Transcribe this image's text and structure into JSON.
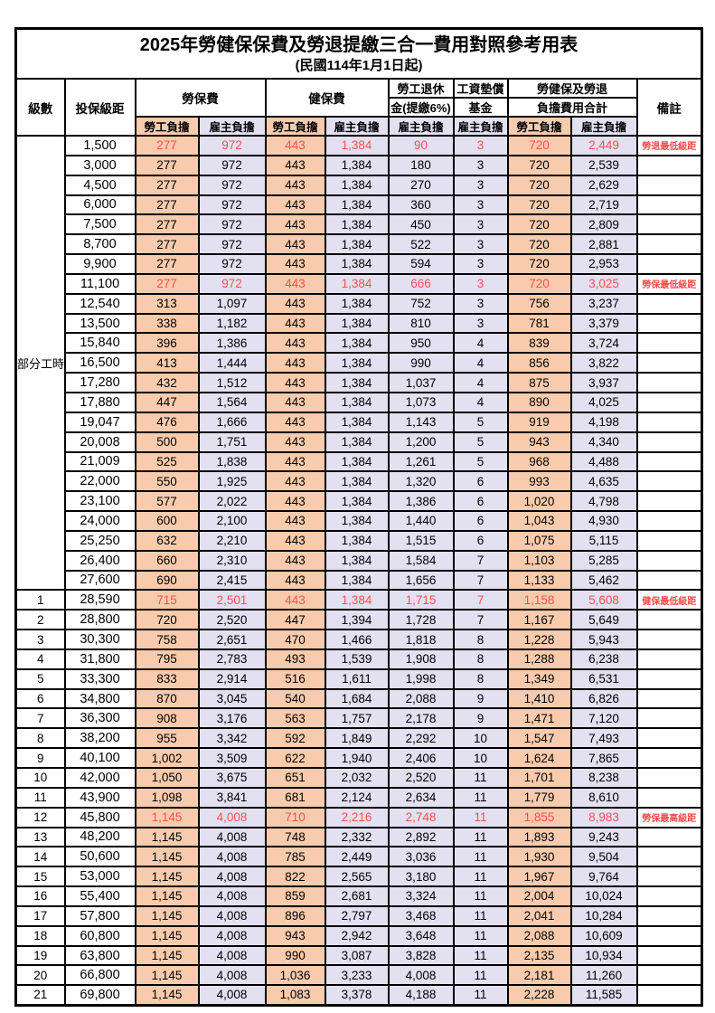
{
  "title": "2025年勞健保保費及勞退提繳三合一費用對照參考用表",
  "subtitle": "(民國114年1月1日起)",
  "colors": {
    "employee_col_bg": "#F8CBAD",
    "employer_col_bg": "#E2E0F1",
    "highlight_red": "#FF5050",
    "border": "#000000"
  },
  "table": {
    "headers": {
      "grade": "級數",
      "bracket": "投保級距",
      "labor_fee": "勞保費",
      "health_fee": "健保費",
      "pension_line1": "勞工退休",
      "pension_line2": "金(提繳6%)",
      "fund_line1": "工資墊償",
      "fund_line2": "基金",
      "total_line1": "勞健保及勞退",
      "total_line2": "負擔費用合計",
      "note": "備註",
      "employee_share": "勞工負擔",
      "employer_share": "雇主負擔"
    },
    "part_time_label": "部分工時",
    "part_time_span": 23,
    "rows": [
      {
        "grade": "",
        "bracket": "1,500",
        "labor_emp": "277",
        "labor_er": "972",
        "health_emp": "443",
        "health_er": "1,384",
        "pension_er": "90",
        "fund_er": "3",
        "total_emp": "720",
        "total_er": "2,449",
        "note": "勞退最低級距",
        "red": true
      },
      {
        "grade": "",
        "bracket": "3,000",
        "labor_emp": "277",
        "labor_er": "972",
        "health_emp": "443",
        "health_er": "1,384",
        "pension_er": "180",
        "fund_er": "3",
        "total_emp": "720",
        "total_er": "2,539",
        "note": "",
        "red": false
      },
      {
        "grade": "",
        "bracket": "4,500",
        "labor_emp": "277",
        "labor_er": "972",
        "health_emp": "443",
        "health_er": "1,384",
        "pension_er": "270",
        "fund_er": "3",
        "total_emp": "720",
        "total_er": "2,629",
        "note": "",
        "red": false
      },
      {
        "grade": "",
        "bracket": "6,000",
        "labor_emp": "277",
        "labor_er": "972",
        "health_emp": "443",
        "health_er": "1,384",
        "pension_er": "360",
        "fund_er": "3",
        "total_emp": "720",
        "total_er": "2,719",
        "note": "",
        "red": false
      },
      {
        "grade": "",
        "bracket": "7,500",
        "labor_emp": "277",
        "labor_er": "972",
        "health_emp": "443",
        "health_er": "1,384",
        "pension_er": "450",
        "fund_er": "3",
        "total_emp": "720",
        "total_er": "2,809",
        "note": "",
        "red": false
      },
      {
        "grade": "",
        "bracket": "8,700",
        "labor_emp": "277",
        "labor_er": "972",
        "health_emp": "443",
        "health_er": "1,384",
        "pension_er": "522",
        "fund_er": "3",
        "total_emp": "720",
        "total_er": "2,881",
        "note": "",
        "red": false
      },
      {
        "grade": "",
        "bracket": "9,900",
        "labor_emp": "277",
        "labor_er": "972",
        "health_emp": "443",
        "health_er": "1,384",
        "pension_er": "594",
        "fund_er": "3",
        "total_emp": "720",
        "total_er": "2,953",
        "note": "",
        "red": false
      },
      {
        "grade": "",
        "bracket": "11,100",
        "labor_emp": "277",
        "labor_er": "972",
        "health_emp": "443",
        "health_er": "1,384",
        "pension_er": "666",
        "fund_er": "3",
        "total_emp": "720",
        "total_er": "3,025",
        "note": "勞保最低級距",
        "red": true
      },
      {
        "grade": "",
        "bracket": "12,540",
        "labor_emp": "313",
        "labor_er": "1,097",
        "health_emp": "443",
        "health_er": "1,384",
        "pension_er": "752",
        "fund_er": "3",
        "total_emp": "756",
        "total_er": "3,237",
        "note": "",
        "red": false
      },
      {
        "grade": "",
        "bracket": "13,500",
        "labor_emp": "338",
        "labor_er": "1,182",
        "health_emp": "443",
        "health_er": "1,384",
        "pension_er": "810",
        "fund_er": "3",
        "total_emp": "781",
        "total_er": "3,379",
        "note": "",
        "red": false
      },
      {
        "grade": "",
        "bracket": "15,840",
        "labor_emp": "396",
        "labor_er": "1,386",
        "health_emp": "443",
        "health_er": "1,384",
        "pension_er": "950",
        "fund_er": "4",
        "total_emp": "839",
        "total_er": "3,724",
        "note": "",
        "red": false
      },
      {
        "grade": "",
        "bracket": "16,500",
        "labor_emp": "413",
        "labor_er": "1,444",
        "health_emp": "443",
        "health_er": "1,384",
        "pension_er": "990",
        "fund_er": "4",
        "total_emp": "856",
        "total_er": "3,822",
        "note": "",
        "red": false
      },
      {
        "grade": "",
        "bracket": "17,280",
        "labor_emp": "432",
        "labor_er": "1,512",
        "health_emp": "443",
        "health_er": "1,384",
        "pension_er": "1,037",
        "fund_er": "4",
        "total_emp": "875",
        "total_er": "3,937",
        "note": "",
        "red": false
      },
      {
        "grade": "",
        "bracket": "17,880",
        "labor_emp": "447",
        "labor_er": "1,564",
        "health_emp": "443",
        "health_er": "1,384",
        "pension_er": "1,073",
        "fund_er": "4",
        "total_emp": "890",
        "total_er": "4,025",
        "note": "",
        "red": false
      },
      {
        "grade": "",
        "bracket": "19,047",
        "labor_emp": "476",
        "labor_er": "1,666",
        "health_emp": "443",
        "health_er": "1,384",
        "pension_er": "1,143",
        "fund_er": "5",
        "total_emp": "919",
        "total_er": "4,198",
        "note": "",
        "red": false
      },
      {
        "grade": "",
        "bracket": "20,008",
        "labor_emp": "500",
        "labor_er": "1,751",
        "health_emp": "443",
        "health_er": "1,384",
        "pension_er": "1,200",
        "fund_er": "5",
        "total_emp": "943",
        "total_er": "4,340",
        "note": "",
        "red": false
      },
      {
        "grade": "",
        "bracket": "21,009",
        "labor_emp": "525",
        "labor_er": "1,838",
        "health_emp": "443",
        "health_er": "1,384",
        "pension_er": "1,261",
        "fund_er": "5",
        "total_emp": "968",
        "total_er": "4,488",
        "note": "",
        "red": false
      },
      {
        "grade": "",
        "bracket": "22,000",
        "labor_emp": "550",
        "labor_er": "1,925",
        "health_emp": "443",
        "health_er": "1,384",
        "pension_er": "1,320",
        "fund_er": "6",
        "total_emp": "993",
        "total_er": "4,635",
        "note": "",
        "red": false
      },
      {
        "grade": "",
        "bracket": "23,100",
        "labor_emp": "577",
        "labor_er": "2,022",
        "health_emp": "443",
        "health_er": "1,384",
        "pension_er": "1,386",
        "fund_er": "6",
        "total_emp": "1,020",
        "total_er": "4,798",
        "note": "",
        "red": false
      },
      {
        "grade": "",
        "bracket": "24,000",
        "labor_emp": "600",
        "labor_er": "2,100",
        "health_emp": "443",
        "health_er": "1,384",
        "pension_er": "1,440",
        "fund_er": "6",
        "total_emp": "1,043",
        "total_er": "4,930",
        "note": "",
        "red": false
      },
      {
        "grade": "",
        "bracket": "25,250",
        "labor_emp": "632",
        "labor_er": "2,210",
        "health_emp": "443",
        "health_er": "1,384",
        "pension_er": "1,515",
        "fund_er": "6",
        "total_emp": "1,075",
        "total_er": "5,115",
        "note": "",
        "red": false
      },
      {
        "grade": "",
        "bracket": "26,400",
        "labor_emp": "660",
        "labor_er": "2,310",
        "health_emp": "443",
        "health_er": "1,384",
        "pension_er": "1,584",
        "fund_er": "7",
        "total_emp": "1,103",
        "total_er": "5,285",
        "note": "",
        "red": false
      },
      {
        "grade": "",
        "bracket": "27,600",
        "labor_emp": "690",
        "labor_er": "2,415",
        "health_emp": "443",
        "health_er": "1,384",
        "pension_er": "1,656",
        "fund_er": "7",
        "total_emp": "1,133",
        "total_er": "5,462",
        "note": "",
        "red": false
      },
      {
        "grade": "1",
        "bracket": "28,590",
        "labor_emp": "715",
        "labor_er": "2,501",
        "health_emp": "443",
        "health_er": "1,384",
        "pension_er": "1,715",
        "fund_er": "7",
        "total_emp": "1,158",
        "total_er": "5,608",
        "note": "健保最低級距",
        "red": true
      },
      {
        "grade": "2",
        "bracket": "28,800",
        "labor_emp": "720",
        "labor_er": "2,520",
        "health_emp": "447",
        "health_er": "1,394",
        "pension_er": "1,728",
        "fund_er": "7",
        "total_emp": "1,167",
        "total_er": "5,649",
        "note": "",
        "red": false
      },
      {
        "grade": "3",
        "bracket": "30,300",
        "labor_emp": "758",
        "labor_er": "2,651",
        "health_emp": "470",
        "health_er": "1,466",
        "pension_er": "1,818",
        "fund_er": "8",
        "total_emp": "1,228",
        "total_er": "5,943",
        "note": "",
        "red": false
      },
      {
        "grade": "4",
        "bracket": "31,800",
        "labor_emp": "795",
        "labor_er": "2,783",
        "health_emp": "493",
        "health_er": "1,539",
        "pension_er": "1,908",
        "fund_er": "8",
        "total_emp": "1,288",
        "total_er": "6,238",
        "note": "",
        "red": false
      },
      {
        "grade": "5",
        "bracket": "33,300",
        "labor_emp": "833",
        "labor_er": "2,914",
        "health_emp": "516",
        "health_er": "1,611",
        "pension_er": "1,998",
        "fund_er": "8",
        "total_emp": "1,349",
        "total_er": "6,531",
        "note": "",
        "red": false
      },
      {
        "grade": "6",
        "bracket": "34,800",
        "labor_emp": "870",
        "labor_er": "3,045",
        "health_emp": "540",
        "health_er": "1,684",
        "pension_er": "2,088",
        "fund_er": "9",
        "total_emp": "1,410",
        "total_er": "6,826",
        "note": "",
        "red": false
      },
      {
        "grade": "7",
        "bracket": "36,300",
        "labor_emp": "908",
        "labor_er": "3,176",
        "health_emp": "563",
        "health_er": "1,757",
        "pension_er": "2,178",
        "fund_er": "9",
        "total_emp": "1,471",
        "total_er": "7,120",
        "note": "",
        "red": false
      },
      {
        "grade": "8",
        "bracket": "38,200",
        "labor_emp": "955",
        "labor_er": "3,342",
        "health_emp": "592",
        "health_er": "1,849",
        "pension_er": "2,292",
        "fund_er": "10",
        "total_emp": "1,547",
        "total_er": "7,493",
        "note": "",
        "red": false
      },
      {
        "grade": "9",
        "bracket": "40,100",
        "labor_emp": "1,002",
        "labor_er": "3,509",
        "health_emp": "622",
        "health_er": "1,940",
        "pension_er": "2,406",
        "fund_er": "10",
        "total_emp": "1,624",
        "total_er": "7,865",
        "note": "",
        "red": false
      },
      {
        "grade": "10",
        "bracket": "42,000",
        "labor_emp": "1,050",
        "labor_er": "3,675",
        "health_emp": "651",
        "health_er": "2,032",
        "pension_er": "2,520",
        "fund_er": "11",
        "total_emp": "1,701",
        "total_er": "8,238",
        "note": "",
        "red": false
      },
      {
        "grade": "11",
        "bracket": "43,900",
        "labor_emp": "1,098",
        "labor_er": "3,841",
        "health_emp": "681",
        "health_er": "2,124",
        "pension_er": "2,634",
        "fund_er": "11",
        "total_emp": "1,779",
        "total_er": "8,610",
        "note": "",
        "red": false
      },
      {
        "grade": "12",
        "bracket": "45,800",
        "labor_emp": "1,145",
        "labor_er": "4,008",
        "health_emp": "710",
        "health_er": "2,216",
        "pension_er": "2,748",
        "fund_er": "11",
        "total_emp": "1,855",
        "total_er": "8,983",
        "note": "勞保最高級距",
        "red": true
      },
      {
        "grade": "13",
        "bracket": "48,200",
        "labor_emp": "1,145",
        "labor_er": "4,008",
        "health_emp": "748",
        "health_er": "2,332",
        "pension_er": "2,892",
        "fund_er": "11",
        "total_emp": "1,893",
        "total_er": "9,243",
        "note": "",
        "red": false
      },
      {
        "grade": "14",
        "bracket": "50,600",
        "labor_emp": "1,145",
        "labor_er": "4,008",
        "health_emp": "785",
        "health_er": "2,449",
        "pension_er": "3,036",
        "fund_er": "11",
        "total_emp": "1,930",
        "total_er": "9,504",
        "note": "",
        "red": false
      },
      {
        "grade": "15",
        "bracket": "53,000",
        "labor_emp": "1,145",
        "labor_er": "4,008",
        "health_emp": "822",
        "health_er": "2,565",
        "pension_er": "3,180",
        "fund_er": "11",
        "total_emp": "1,967",
        "total_er": "9,764",
        "note": "",
        "red": false
      },
      {
        "grade": "16",
        "bracket": "55,400",
        "labor_emp": "1,145",
        "labor_er": "4,008",
        "health_emp": "859",
        "health_er": "2,681",
        "pension_er": "3,324",
        "fund_er": "11",
        "total_emp": "2,004",
        "total_er": "10,024",
        "note": "",
        "red": false
      },
      {
        "grade": "17",
        "bracket": "57,800",
        "labor_emp": "1,145",
        "labor_er": "4,008",
        "health_emp": "896",
        "health_er": "2,797",
        "pension_er": "3,468",
        "fund_er": "11",
        "total_emp": "2,041",
        "total_er": "10,284",
        "note": "",
        "red": false
      },
      {
        "grade": "18",
        "bracket": "60,800",
        "labor_emp": "1,145",
        "labor_er": "4,008",
        "health_emp": "943",
        "health_er": "2,942",
        "pension_er": "3,648",
        "fund_er": "11",
        "total_emp": "2,088",
        "total_er": "10,609",
        "note": "",
        "red": false
      },
      {
        "grade": "19",
        "bracket": "63,800",
        "labor_emp": "1,145",
        "labor_er": "4,008",
        "health_emp": "990",
        "health_er": "3,087",
        "pension_er": "3,828",
        "fund_er": "11",
        "total_emp": "2,135",
        "total_er": "10,934",
        "note": "",
        "red": false
      },
      {
        "grade": "20",
        "bracket": "66,800",
        "labor_emp": "1,145",
        "labor_er": "4,008",
        "health_emp": "1,036",
        "health_er": "3,233",
        "pension_er": "4,008",
        "fund_er": "11",
        "total_emp": "2,181",
        "total_er": "11,260",
        "note": "",
        "red": false
      },
      {
        "grade": "21",
        "bracket": "69,800",
        "labor_emp": "1,145",
        "labor_er": "4,008",
        "health_emp": "1,083",
        "health_er": "3,378",
        "pension_er": "4,188",
        "fund_er": "11",
        "total_emp": "2,228",
        "total_er": "11,585",
        "note": "",
        "red": false
      }
    ]
  }
}
